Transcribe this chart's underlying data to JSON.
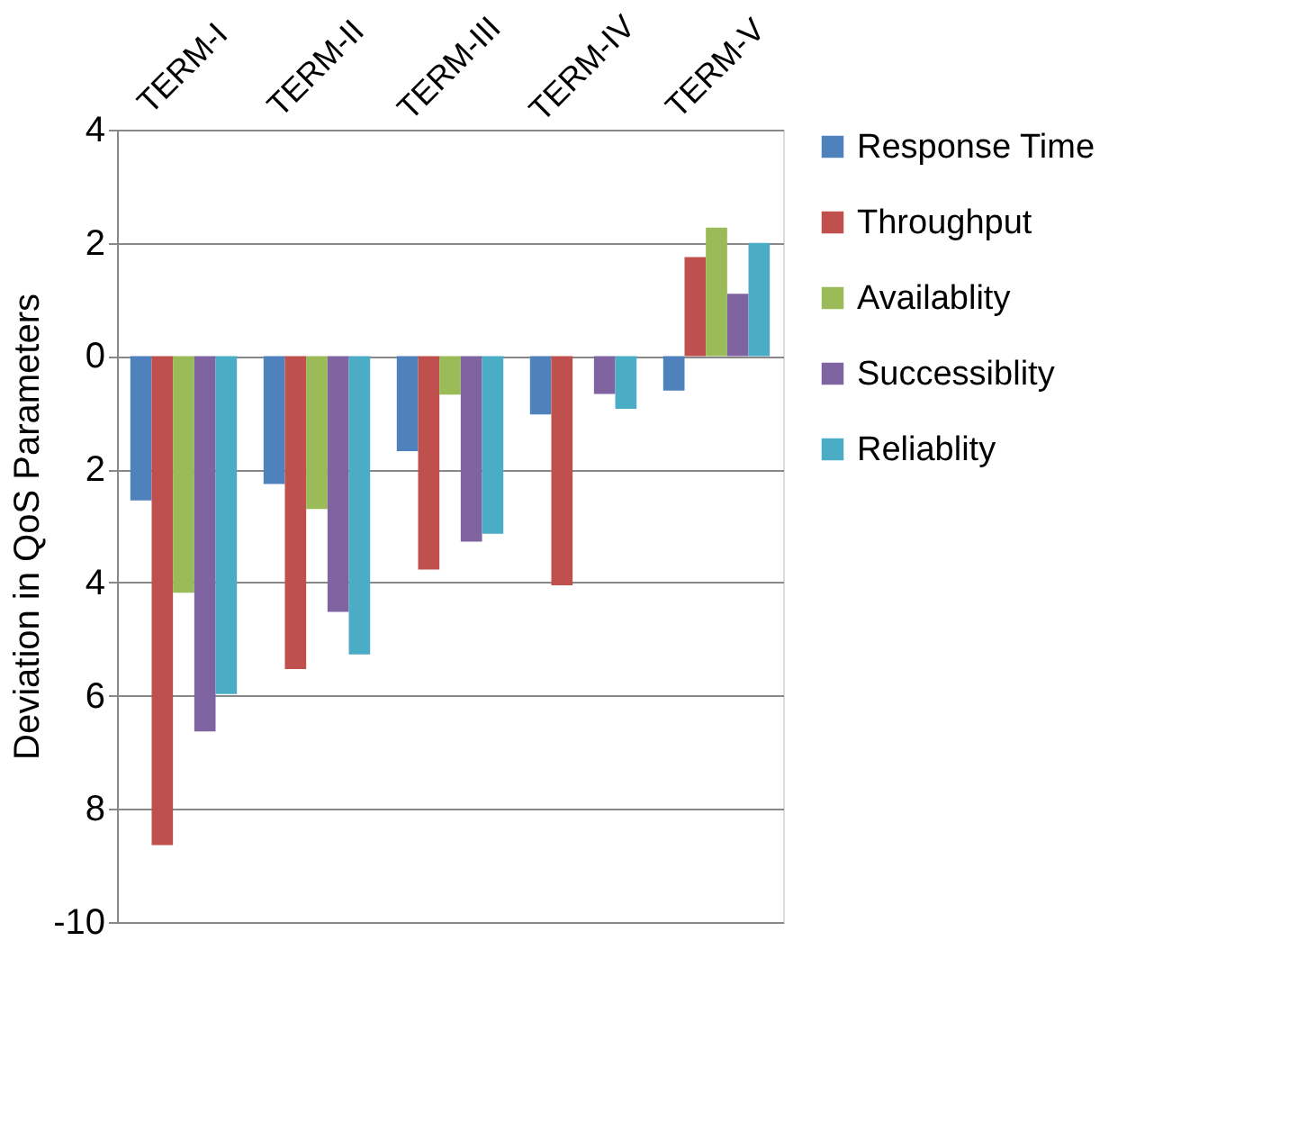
{
  "chart_data": {
    "type": "bar",
    "ylabel": "Deviation in QoS Parameters",
    "categories": [
      "TERM-I",
      "TERM-II",
      "TERM-III",
      "TERM-IV",
      "TERM-V"
    ],
    "series": [
      {
        "name": "Response Time",
        "color": "#4f81bd",
        "values": [
          -2.55,
          -2.26,
          -1.68,
          -1.03,
          -0.61
        ]
      },
      {
        "name": "Throughput",
        "color": "#c0504d",
        "values": [
          -8.64,
          -5.53,
          -3.77,
          -4.05,
          1.75
        ]
      },
      {
        "name": "Availablity",
        "color": "#9bbb59",
        "values": [
          -4.18,
          -2.7,
          -0.68,
          0,
          2.27
        ]
      },
      {
        "name": "Successiblity",
        "color": "#8064a2",
        "values": [
          -6.63,
          -4.52,
          -3.28,
          -0.67,
          1.1
        ]
      },
      {
        "name": "Reliablity",
        "color": "#4bacc6",
        "values": [
          -5.97,
          -5.27,
          -3.14,
          -0.93,
          2.0
        ]
      }
    ],
    "ylim": [
      -10,
      4
    ],
    "yticks": [
      4,
      2,
      0,
      {
        "value": -2,
        "label": "2"
      },
      {
        "value": -4,
        "label": "4"
      },
      {
        "value": -6,
        "label": "6"
      },
      {
        "value": -8,
        "label": "8"
      },
      -10
    ],
    "grid": "y",
    "legend": "right"
  }
}
